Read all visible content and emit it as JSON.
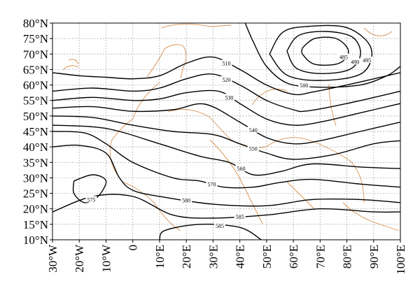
{
  "chart_data": {
    "type": "contour",
    "xlim": [
      -30,
      100
    ],
    "ylim": [
      10,
      80
    ],
    "xticks": [
      {
        "value": -30,
        "label": "30°W"
      },
      {
        "value": -20,
        "label": "20°W"
      },
      {
        "value": -10,
        "label": "10°W"
      },
      0,
      {
        "value": 10,
        "label": "10°E"
      },
      {
        "value": 20,
        "label": "20°E"
      },
      {
        "value": 30,
        "label": "30°E"
      },
      {
        "value": 40,
        "label": "40°E"
      },
      {
        "value": 50,
        "label": "50°E"
      },
      {
        "value": 60,
        "label": "60°E"
      },
      {
        "value": 70,
        "label": "70°E"
      },
      {
        "value": 80,
        "label": "80°E"
      },
      {
        "value": 90,
        "label": "90°E"
      },
      {
        "value": 100,
        "label": "100°E"
      }
    ],
    "yticks": [
      {
        "value": 10,
        "label": "10°N"
      },
      {
        "value": 15,
        "label": "15°N"
      },
      {
        "value": 20,
        "label": "20°N"
      },
      {
        "value": 25,
        "label": "25°N"
      },
      {
        "value": 30,
        "label": "30°N"
      },
      {
        "value": 35,
        "label": "35°N"
      },
      {
        "value": 40,
        "label": "40°N"
      },
      {
        "value": 45,
        "label": "45°N"
      },
      {
        "value": 50,
        "label": "50°N"
      },
      {
        "value": 55,
        "label": "55°N"
      },
      {
        "value": 60,
        "label": "60°N"
      },
      {
        "value": 65,
        "label": "65°N"
      },
      {
        "value": 70,
        "label": "70°N"
      },
      {
        "value": 75,
        "label": "75°N"
      },
      {
        "value": 80,
        "label": "80°N"
      }
    ],
    "grid": true,
    "color": "#000000",
    "contours": [
      {
        "level": 485,
        "lon": [
          63.4,
          68,
          76,
          80.6,
          77,
          68,
          63.4,
          63.4
        ],
        "lat": [
          72,
          75,
          75,
          71,
          67,
          66.7,
          70,
          72
        ]
      },
      {
        "level": 490,
        "lon": [
          57.6,
          62,
          72,
          82,
          85.1,
          81,
          70,
          61,
          57.6
        ],
        "lat": [
          71,
          76,
          77.3,
          75.5,
          70,
          65,
          63.7,
          65.5,
          71
        ]
      },
      {
        "level": 495,
        "lon": [
          51.1,
          56,
          65,
          80,
          89,
          86,
          72,
          58,
          51.1
        ],
        "lat": [
          70,
          77,
          78.9,
          78.5,
          72,
          64,
          61.5,
          63,
          70
        ]
      },
      {
        "level": 500,
        "lon": [
          42,
          45,
          50,
          58,
          70,
          85,
          95,
          100
        ],
        "lat": [
          80,
          74,
          66,
          60.5,
          59.3,
          60,
          63,
          66
        ]
      },
      {
        "level": 510,
        "lon": [
          -30,
          -20,
          -10,
          0,
          10,
          20,
          30,
          40,
          50,
          60,
          67,
          80,
          100
        ],
        "lat": [
          64,
          63,
          62.5,
          62,
          63,
          67,
          69,
          65,
          60,
          57,
          57.7,
          60,
          64
        ]
      },
      {
        "level": 520,
        "lon": [
          -30,
          -15,
          0,
          10,
          20,
          30,
          40,
          50,
          60,
          65,
          80,
          100
        ],
        "lat": [
          58,
          59,
          58,
          59,
          62,
          63.5,
          60,
          55,
          52,
          51.6,
          54,
          58
        ]
      },
      {
        "level": 530,
        "lon": [
          -30,
          -15,
          0,
          10,
          20,
          32,
          40,
          50,
          60,
          70,
          85,
          100
        ],
        "lat": [
          55,
          56,
          55,
          55.5,
          57.5,
          58,
          54,
          49,
          47,
          48,
          51,
          54
        ]
      },
      {
        "level": 540,
        "lon": [
          -30,
          -15,
          0,
          15,
          27,
          40,
          50,
          60,
          70,
          85,
          100
        ],
        "lat": [
          52.5,
          53,
          51.5,
          52,
          53.8,
          48,
          43,
          41,
          42,
          45,
          48
        ]
      },
      {
        "level": 550,
        "lon": [
          -30,
          -15,
          0,
          15,
          30,
          40,
          50,
          60,
          75,
          90,
          100
        ],
        "lat": [
          50,
          49.5,
          47,
          45,
          44,
          41,
          38,
          36,
          37.5,
          41,
          42
        ]
      },
      {
        "level": 560,
        "lon": [
          -30,
          -15,
          -5,
          10,
          25,
          36,
          45,
          55,
          67,
          85,
          100
        ],
        "lat": [
          47,
          46.5,
          45,
          41,
          37,
          35,
          31,
          32,
          34.5,
          33.5,
          33
        ]
      },
      {
        "level": 570,
        "lon": [
          -30,
          -18,
          -10,
          0,
          15,
          25,
          34,
          45,
          55,
          67,
          85,
          100
        ],
        "lat": [
          45,
          44.5,
          41,
          35,
          30,
          29,
          27,
          27,
          28.5,
          29.5,
          28,
          27
        ]
      },
      {
        "level": 575,
        "lon": [
          -22,
          -15,
          -10,
          -13,
          -18,
          -22,
          -22
        ],
        "lat": [
          29,
          31,
          29,
          24,
          22,
          25,
          29
        ]
      },
      {
        "level": 580,
        "lon": [
          -30,
          -20,
          -10,
          -5,
          0,
          10,
          30,
          50,
          67,
          85,
          100
        ],
        "lat": [
          40,
          40.5,
          38,
          30,
          26,
          24,
          21.5,
          21,
          23,
          23,
          22
        ]
      },
      {
        "level": 585,
        "lon": [
          -30,
          -15,
          0,
          15,
          30,
          50,
          70,
          90,
          100
        ],
        "lat": [
          19,
          24,
          24,
          18,
          17,
          18,
          20,
          19,
          19
        ]
      },
      {
        "level": 585,
        "lon": [
          10,
          12,
          25,
          40,
          48
        ],
        "lat": [
          10,
          13,
          15,
          14,
          10
        ]
      }
    ]
  }
}
